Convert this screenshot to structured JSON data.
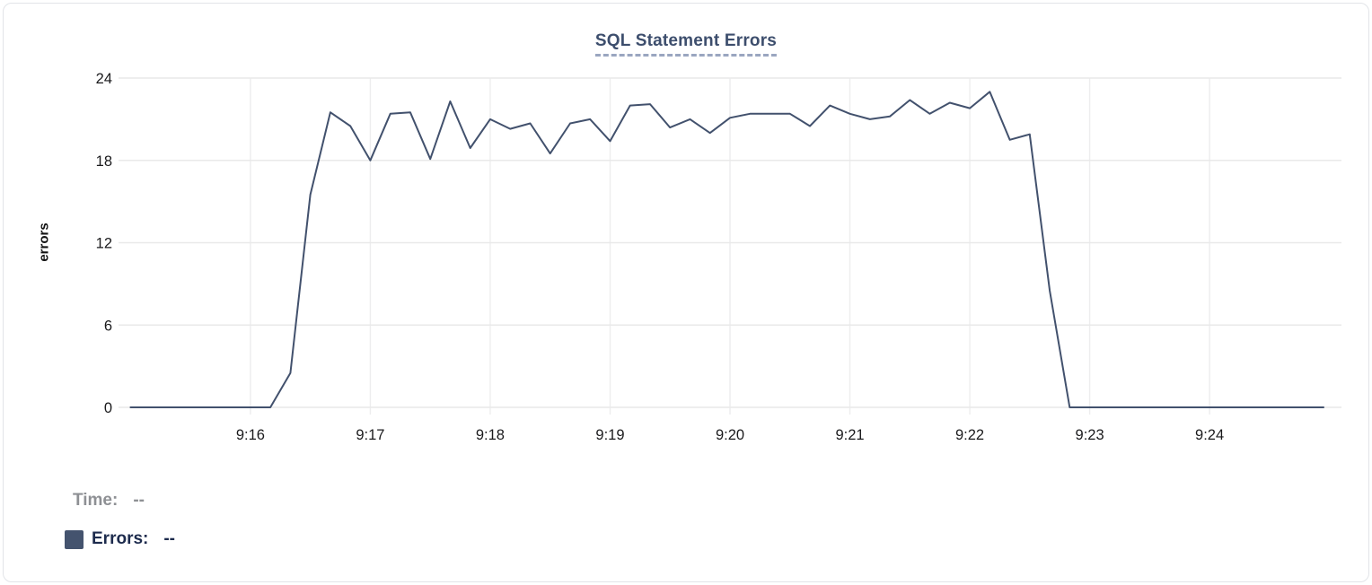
{
  "chart": {
    "title": "SQL Statement Errors"
  },
  "tooltip": {
    "time_label": "Time:",
    "time_value": "--",
    "errors_label": "Errors:",
    "errors_value": "--"
  },
  "colors": {
    "line": "#42516d",
    "legend_swatch": "#44536e",
    "title_text": "#3d4e6d",
    "grid": "#e9e9e9",
    "tick_text": "#1a1a1c"
  },
  "chart_data": {
    "type": "line",
    "title": "SQL Statement Errors",
    "xlabel": "",
    "ylabel": "errors",
    "ylim": [
      0,
      24
    ],
    "y_ticks": [
      0,
      6,
      12,
      18,
      24
    ],
    "x_ticks": [
      "9:16",
      "9:17",
      "9:18",
      "9:19",
      "9:20",
      "9:21",
      "9:22",
      "9:23",
      "9:24"
    ],
    "x_range": [
      "9:14:54",
      "9:25:06"
    ],
    "grid": true,
    "legend_position": "bottom-left",
    "series": [
      {
        "name": "Errors",
        "color": "#42516d",
        "x": [
          "9:15:00",
          "9:15:10",
          "9:15:20",
          "9:15:30",
          "9:15:40",
          "9:15:50",
          "9:16:00",
          "9:16:10",
          "9:16:20",
          "9:16:30",
          "9:16:40",
          "9:16:50",
          "9:17:00",
          "9:17:10",
          "9:17:20",
          "9:17:30",
          "9:17:40",
          "9:17:50",
          "9:18:00",
          "9:18:10",
          "9:18:20",
          "9:18:30",
          "9:18:40",
          "9:18:50",
          "9:19:00",
          "9:19:10",
          "9:19:20",
          "9:19:30",
          "9:19:40",
          "9:19:50",
          "9:20:00",
          "9:20:10",
          "9:20:20",
          "9:20:30",
          "9:20:40",
          "9:20:50",
          "9:21:00",
          "9:21:10",
          "9:21:20",
          "9:21:30",
          "9:21:40",
          "9:21:50",
          "9:22:00",
          "9:22:10",
          "9:22:20",
          "9:22:30",
          "9:22:40",
          "9:22:50",
          "9:23:00",
          "9:23:10",
          "9:23:20",
          "9:23:30",
          "9:23:40",
          "9:23:50",
          "9:24:00",
          "9:24:10",
          "9:24:20",
          "9:24:30",
          "9:24:40",
          "9:24:50",
          "9:24:57"
        ],
        "values": [
          0,
          0,
          0,
          0,
          0,
          0,
          0,
          0,
          2.5,
          15.5,
          21.5,
          20.5,
          18,
          21.4,
          21.5,
          18.1,
          22.3,
          18.9,
          21,
          20.3,
          20.7,
          18.5,
          20.7,
          21,
          19.4,
          22,
          22.1,
          20.4,
          21,
          20,
          21.1,
          21.4,
          21.4,
          21.4,
          20.5,
          22,
          21.4,
          21,
          21.2,
          22.4,
          21.4,
          22.2,
          21.8,
          23,
          19.5,
          19.9,
          8.5,
          0,
          0,
          0,
          0,
          0,
          0,
          0,
          0,
          0,
          0,
          0,
          0,
          0,
          0
        ]
      }
    ]
  }
}
